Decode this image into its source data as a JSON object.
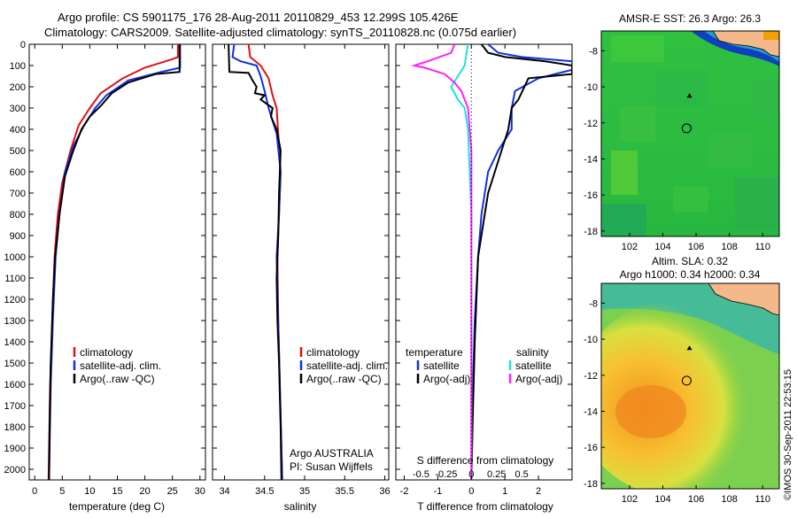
{
  "header": {
    "line1": "Argo profile: CS 5901175_176 28-Aug-2011 20110829_453 12.299S 105.426E",
    "line2": "Climatology: CARS2009. Satellite-adjusted climatology: synTS_20110828.nc (0.075d earlier)"
  },
  "credit": "©IMOS 30-Sep-2011 22:53:15",
  "colors": {
    "climatology": "#e01010",
    "satellite": "#1030e0",
    "argo": "#000000",
    "s_satellite": "#20e0e0",
    "s_argo": "#ff20ff",
    "land": "#f4b88a"
  },
  "chart_data": [
    {
      "type": "line",
      "ylabel": "",
      "ylim": [
        2050,
        0
      ],
      "yticks": [
        0,
        100,
        200,
        300,
        400,
        500,
        600,
        700,
        800,
        900,
        1000,
        1100,
        1200,
        1300,
        1400,
        1500,
        1600,
        1700,
        1800,
        1900,
        2000
      ],
      "xlabel": "temperature (deg C)",
      "xlim": [
        -1,
        31
      ],
      "xticks": [
        0,
        5,
        10,
        15,
        20,
        25,
        30
      ],
      "legend": [
        "climatology",
        "satellite-adj. clim.",
        "Argo(..raw -QC)"
      ],
      "series": [
        {
          "name": "climatology",
          "color": "#e01010",
          "points": [
            [
              26,
              0
            ],
            [
              26,
              60
            ],
            [
              25,
              70
            ],
            [
              20,
              110
            ],
            [
              16,
              160
            ],
            [
              12,
              230
            ],
            [
              10,
              300
            ],
            [
              8,
              380
            ],
            [
              6.5,
              500
            ],
            [
              5,
              650
            ],
            [
              4.2,
              800
            ],
            [
              3.6,
              1000
            ],
            [
              3.2,
              1300
            ],
            [
              2.8,
              1600
            ],
            [
              2.6,
              1900
            ],
            [
              2.5,
              2050
            ]
          ]
        },
        {
          "name": "satellite-adj. clim.",
          "color": "#1030e0",
          "points": [
            [
              26.4,
              0
            ],
            [
              26.4,
              110
            ],
            [
              23,
              130
            ],
            [
              17,
              170
            ],
            [
              13,
              240
            ],
            [
              11,
              300
            ],
            [
              9,
              380
            ],
            [
              7,
              480
            ],
            [
              5.5,
              600
            ],
            [
              4.5,
              800
            ],
            [
              3.8,
              1000
            ],
            [
              3.3,
              1300
            ],
            [
              2.9,
              1600
            ],
            [
              2.7,
              1900
            ],
            [
              2.6,
              2050
            ]
          ]
        },
        {
          "name": "Argo(..raw -QC)",
          "color": "#000000",
          "points": [
            [
              26.3,
              0
            ],
            [
              26.3,
              130
            ],
            [
              22,
              140
            ],
            [
              17,
              180
            ],
            [
              14,
              230
            ],
            [
              12,
              290
            ],
            [
              10,
              340
            ],
            [
              8.5,
              400
            ],
            [
              7,
              500
            ],
            [
              5.5,
              620
            ],
            [
              4.5,
              800
            ],
            [
              3.7,
              1000
            ],
            [
              3.3,
              1200
            ],
            [
              2.9,
              1500
            ],
            [
              2.7,
              1800
            ],
            [
              2.6,
              2050
            ]
          ]
        }
      ]
    },
    {
      "type": "line",
      "xlabel": "salinity",
      "xlim": [
        33.85,
        36.05
      ],
      "xticks": [
        34,
        34.5,
        35,
        35.5,
        36
      ],
      "ylim": [
        2050,
        0
      ],
      "legend": [
        "climatology",
        "satellite-adj. clim.",
        "Argo(..raw -QC)"
      ],
      "annotation": [
        "Argo AUSTRALIA",
        "PI: Susan Wijffels"
      ],
      "series": [
        {
          "name": "climatology",
          "color": "#e01010",
          "points": [
            [
              34.3,
              0
            ],
            [
              34.32,
              60
            ],
            [
              34.45,
              100
            ],
            [
              34.55,
              160
            ],
            [
              34.6,
              240
            ],
            [
              34.65,
              300
            ],
            [
              34.66,
              360
            ],
            [
              34.67,
              420
            ],
            [
              34.7,
              600
            ],
            [
              34.68,
              800
            ],
            [
              34.66,
              1000
            ],
            [
              34.67,
              1300
            ],
            [
              34.69,
              1600
            ],
            [
              34.71,
              1900
            ],
            [
              34.72,
              2050
            ]
          ]
        },
        {
          "name": "satellite-adj. clim.",
          "color": "#1030e0",
          "points": [
            [
              34.12,
              0
            ],
            [
              34.1,
              60
            ],
            [
              34.2,
              80
            ],
            [
              34.4,
              100
            ],
            [
              34.45,
              150
            ],
            [
              34.5,
              220
            ],
            [
              34.55,
              300
            ],
            [
              34.6,
              360
            ],
            [
              34.65,
              420
            ],
            [
              34.7,
              600
            ],
            [
              34.68,
              800
            ],
            [
              34.65,
              1000
            ],
            [
              34.67,
              1300
            ],
            [
              34.69,
              1600
            ],
            [
              34.71,
              1900
            ],
            [
              34.72,
              2050
            ]
          ]
        },
        {
          "name": "Argo(..raw -QC)",
          "color": "#000000",
          "points": [
            [
              34.05,
              0
            ],
            [
              34.06,
              130
            ],
            [
              34.3,
              135
            ],
            [
              34.35,
              170
            ],
            [
              34.4,
              200
            ],
            [
              34.38,
              230
            ],
            [
              34.5,
              240
            ],
            [
              34.45,
              260
            ],
            [
              34.6,
              300
            ],
            [
              34.58,
              340
            ],
            [
              34.65,
              400
            ],
            [
              34.7,
              500
            ],
            [
              34.68,
              700
            ],
            [
              34.67,
              900
            ],
            [
              34.65,
              1100
            ],
            [
              34.66,
              1300
            ],
            [
              34.68,
              1500
            ],
            [
              34.7,
              1800
            ],
            [
              34.71,
              2050
            ]
          ]
        }
      ]
    },
    {
      "type": "line",
      "xlabel": "T difference from climatology",
      "xlim": [
        -2.25,
        3
      ],
      "xticks": [
        -2,
        -1,
        0,
        1,
        2
      ],
      "ylim": [
        2050,
        0
      ],
      "top_label": "S difference from climatology",
      "top_ticks": [
        [
          "-0.5",
          -1.5
        ],
        [
          "-0.25",
          -0.75
        ],
        [
          "0",
          0
        ],
        [
          "0.25",
          0.75
        ],
        [
          "0.5",
          1.5
        ]
      ],
      "legend_titles": [
        "temperature",
        "salinity"
      ],
      "legend": [
        [
          "satellite",
          "Argo(-adj)"
        ],
        [
          "satellite",
          "Argo(-adj)"
        ]
      ],
      "series": [
        {
          "name": "T satellite",
          "color": "#1030e0",
          "points": [
            [
              0.5,
              0
            ],
            [
              0.8,
              40
            ],
            [
              1.5,
              60
            ],
            [
              3,
              80
            ],
            [
              3,
              90
            ],
            [
              3,
              120
            ],
            [
              2,
              160
            ],
            [
              1.3,
              220
            ],
            [
              1.2,
              300
            ],
            [
              1.2,
              400
            ],
            [
              0.8,
              500
            ],
            [
              0.5,
              600
            ],
            [
              0.3,
              800
            ],
            [
              0.2,
              1000
            ],
            [
              0.1,
              1300
            ],
            [
              0.05,
              1600
            ],
            [
              0,
              2050
            ]
          ]
        },
        {
          "name": "T Argo(-adj)",
          "color": "#000000",
          "points": [
            [
              0.3,
              0
            ],
            [
              0.5,
              40
            ],
            [
              1,
              60
            ],
            [
              2.2,
              80
            ],
            [
              3,
              100
            ],
            [
              3,
              140
            ],
            [
              1.7,
              160
            ],
            [
              1.4,
              260
            ],
            [
              1.2,
              300
            ],
            [
              1.1,
              400
            ],
            [
              0.9,
              500
            ],
            [
              0.7,
              600
            ],
            [
              0.5,
              700
            ],
            [
              0.4,
              800
            ],
            [
              0.2,
              1000
            ],
            [
              0.15,
              1200
            ],
            [
              0.1,
              1400
            ],
            [
              0.05,
              1700
            ],
            [
              0,
              2050
            ]
          ]
        },
        {
          "name": "S satellite",
          "color": "#20e0e0",
          "points": [
            [
              -0.1,
              0
            ],
            [
              -0.2,
              100
            ],
            [
              -0.4,
              150
            ],
            [
              -0.6,
              200
            ],
            [
              -0.4,
              260
            ],
            [
              -0.2,
              300
            ],
            [
              -0.1,
              400
            ],
            [
              -0.05,
              600
            ],
            [
              0,
              800
            ],
            [
              0,
              1000
            ],
            [
              0,
              1300
            ],
            [
              0,
              1600
            ],
            [
              0,
              1900
            ],
            [
              0,
              2050
            ]
          ]
        },
        {
          "name": "S Argo(-adj)",
          "color": "#ff20ff",
          "points": [
            [
              -0.5,
              0
            ],
            [
              -0.6,
              40
            ],
            [
              -1.3,
              80
            ],
            [
              -1.7,
              100
            ],
            [
              -1.4,
              110
            ],
            [
              -0.8,
              140
            ],
            [
              -0.5,
              180
            ],
            [
              -0.3,
              220
            ],
            [
              -0.2,
              260
            ],
            [
              -0.1,
              300
            ],
            [
              -0.05,
              400
            ],
            [
              0,
              500
            ],
            [
              0,
              700
            ],
            [
              0,
              1000
            ],
            [
              0,
              1400
            ],
            [
              0,
              2050
            ]
          ]
        }
      ]
    },
    {
      "type": "heatmap",
      "title": "AMSR-E SST: 26.3 Argo: 26.3",
      "xlim": [
        100.3,
        111
      ],
      "ylim": [
        -18.3,
        -6.9
      ],
      "xticks": [
        102,
        104,
        106,
        108,
        110
      ],
      "yticks": [
        -8,
        -10,
        -12,
        -14,
        -16,
        -18
      ],
      "argo_position": [
        105.43,
        -12.3
      ],
      "previous_position": [
        105.6,
        -10.5
      ]
    },
    {
      "type": "heatmap",
      "title_lines": [
        "Altim. SLA: 0.32",
        "Argo h1000: 0.34 h2000: 0.34"
      ],
      "xlim": [
        100.3,
        111
      ],
      "ylim": [
        -18.3,
        -6.9
      ],
      "xticks": [
        102,
        104,
        106,
        108,
        110
      ],
      "yticks": [
        -8,
        -10,
        -12,
        -14,
        -16,
        -18
      ],
      "argo_position": [
        105.43,
        -12.3
      ],
      "previous_position": [
        105.6,
        -10.5
      ]
    }
  ]
}
